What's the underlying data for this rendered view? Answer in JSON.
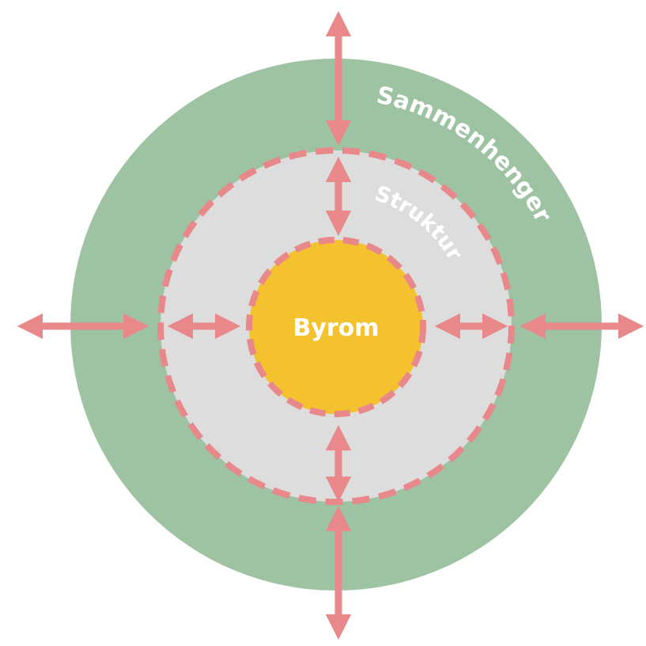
{
  "diagram": {
    "outer_label": "Sammenhenger",
    "middle_label": "Struktur",
    "center_label": "Byrom"
  }
}
